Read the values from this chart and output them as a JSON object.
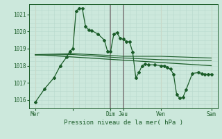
{
  "bg_color": "#cce8dc",
  "grid_minor_color": "#b8d8cc",
  "grid_major_color": "#c8d8c8",
  "dark_vline_color": "#808080",
  "line_color": "#1a5c28",
  "font_color": "#1a5c28",
  "title": "Pression niveau de la mer( hPa )",
  "ylim": [
    1015.5,
    1021.6
  ],
  "yticks": [
    1016,
    1017,
    1018,
    1019,
    1020,
    1021
  ],
  "xlim": [
    0,
    30
  ],
  "day_ticks_x": [
    1,
    7,
    13,
    15,
    21,
    29
  ],
  "day_labels": [
    "Mer",
    "",
    "Dim",
    "Jeu",
    "Ven",
    "Sam"
  ],
  "dark_vlines": [
    13,
    15
  ],
  "main_x": [
    1,
    2.5,
    4,
    5,
    6,
    6.5,
    7,
    7.5,
    8,
    8.5,
    9,
    9.5,
    10,
    11,
    12,
    12.5,
    13,
    13.5,
    14,
    14.5,
    15,
    15.5,
    16,
    16.5,
    17,
    17.5,
    18,
    18.5,
    19,
    20,
    21,
    21.5,
    22,
    22.5,
    23,
    23.5,
    24,
    24.5,
    25,
    26,
    27,
    27.5,
    28,
    28.5,
    29
  ],
  "main_y": [
    1015.85,
    1016.65,
    1017.3,
    1018.0,
    1018.5,
    1018.85,
    1019.0,
    1021.2,
    1021.35,
    1021.35,
    1020.3,
    1020.1,
    1020.05,
    1019.85,
    1019.5,
    1018.85,
    1018.85,
    1019.85,
    1019.95,
    1019.6,
    1019.55,
    1019.4,
    1019.4,
    1018.8,
    1017.3,
    1017.6,
    1018.0,
    1018.1,
    1018.05,
    1018.05,
    1018.0,
    1018.0,
    1017.9,
    1017.8,
    1017.5,
    1016.3,
    1016.1,
    1016.15,
    1016.6,
    1017.55,
    1017.6,
    1017.55,
    1017.5,
    1017.5,
    1017.5
  ],
  "smooth1_x": [
    1,
    7,
    13,
    15,
    21,
    29
  ],
  "smooth1_y": [
    1018.65,
    1018.7,
    1018.6,
    1018.55,
    1018.55,
    1018.45
  ],
  "smooth2_x": [
    1,
    7,
    13,
    15,
    21,
    29
  ],
  "smooth2_y": [
    1018.62,
    1018.65,
    1018.5,
    1018.45,
    1018.35,
    1018.3
  ],
  "trend_x": [
    1,
    29
  ],
  "trend_y": [
    1018.65,
    1018.0
  ]
}
